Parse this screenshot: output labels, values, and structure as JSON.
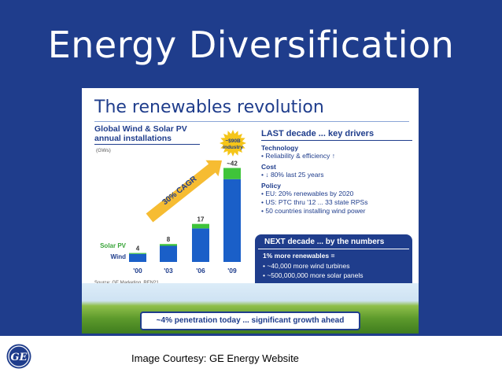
{
  "slide": {
    "title": "Energy Diversification",
    "courtesy": "Image Courtesy: GE Energy Website"
  },
  "panel": {
    "title": "The renewables revolution",
    "source": "Source: GE Marketing, REN21",
    "banner": "~4% penetration today ... significant growth ahead"
  },
  "drivers": {
    "heading": "LAST decade ... key drivers",
    "technology_label": "Technology",
    "technology_items": [
      "• Reliability & efficiency ↑"
    ],
    "cost_label": "Cost",
    "cost_items": [
      "• ↓ 80% last 25 years"
    ],
    "policy_label": "Policy",
    "policy_items": [
      "• EU: 20% renewables by 2020",
      "• US: PTC thru '12 ... 33 state RPSs",
      "• 50 countries installing wind power"
    ]
  },
  "next_decade": {
    "heading": "NEXT decade ... by the numbers",
    "sub": "1% more renewables =",
    "items": [
      "• ~40,000 more wind turbines",
      "• ~500,000,000 more solar panels"
    ]
  },
  "colors": {
    "wind": "#1a5fc8",
    "solar": "#3fc43a",
    "title_blue": "#1f3d8c",
    "arrow": "#f5b51c",
    "badge": "#f5c518"
  },
  "chart_data": {
    "type": "bar",
    "stacked": true,
    "title": "Global Wind & Solar PV annual installations",
    "unit": "(GWs)",
    "categories": [
      "'00",
      "'03",
      "'06",
      "'09"
    ],
    "series": [
      {
        "name": "Wind",
        "values": [
          3.6,
          7.2,
          15.0,
          37.0
        ]
      },
      {
        "name": "Solar PV",
        "values": [
          0.4,
          0.8,
          2.0,
          5.0
        ]
      }
    ],
    "totals": [
      "4",
      "8",
      "17",
      "~42"
    ],
    "cagr_label": "30% CAGR",
    "badge_label": "~$90B industry",
    "ylim": [
      0,
      45
    ]
  }
}
